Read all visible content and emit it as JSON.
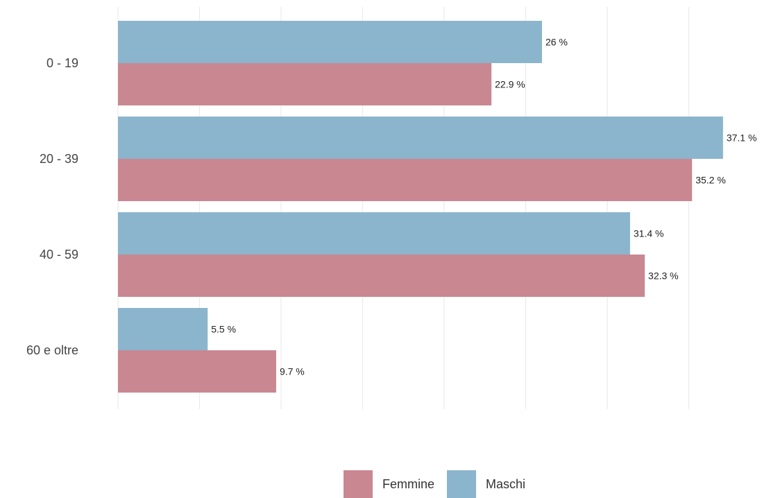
{
  "chart_data": {
    "type": "bar",
    "orientation": "horizontal",
    "categories": [
      "0 - 19",
      "20 - 39",
      "40 - 59",
      "60 e oltre"
    ],
    "series": [
      {
        "name": "Maschi",
        "color": "#8bb5cd",
        "values": [
          26,
          37.1,
          31.4,
          5.5
        ],
        "labels": [
          "26 %",
          "37.1 %",
          "31.4 %",
          "5.5 %"
        ]
      },
      {
        "name": "Femmine",
        "color": "#c98791",
        "values": [
          22.9,
          35.2,
          32.3,
          9.7
        ],
        "labels": [
          "22.9 %",
          "35.2 %",
          "32.3 %",
          "9.7 %"
        ]
      }
    ],
    "xlim": [
      0,
      40
    ],
    "grid": "vertical",
    "legend_position": "bottom",
    "legend": [
      {
        "name": "Femmine",
        "color": "#c98791"
      },
      {
        "name": "Maschi",
        "color": "#8bb5cd"
      }
    ]
  }
}
